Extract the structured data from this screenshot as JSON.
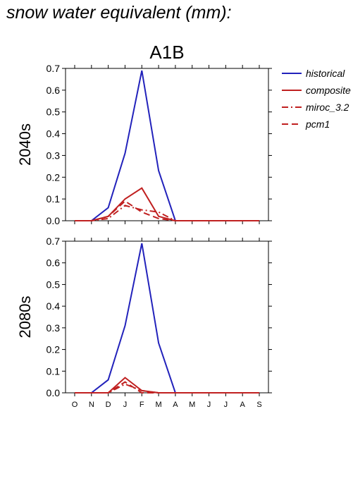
{
  "page": {
    "title": "snow water equivalent (mm):"
  },
  "chart_data": [
    {
      "type": "line",
      "title": "A1B",
      "ylabel": "2040s",
      "categories": [
        "O",
        "N",
        "D",
        "J",
        "F",
        "M",
        "A",
        "M",
        "J",
        "J",
        "A",
        "S"
      ],
      "ylim": [
        0,
        0.7
      ],
      "yticks": [
        "0.0",
        "0.1",
        "0.2",
        "0.3",
        "0.4",
        "0.5",
        "0.6",
        "0.7"
      ],
      "series": [
        {
          "name": "historical",
          "color": "#2222bb",
          "dash": "solid",
          "values": [
            0,
            0,
            0.06,
            0.31,
            0.69,
            0.23,
            0,
            0,
            0,
            0,
            0,
            0
          ]
        },
        {
          "name": "composite",
          "color": "#c02020",
          "dash": "solid",
          "values": [
            0,
            0,
            0.02,
            0.1,
            0.15,
            0.02,
            0,
            0,
            0,
            0,
            0,
            0
          ]
        },
        {
          "name": "miroc_3.2",
          "color": "#c02020",
          "dash": "dashdot",
          "values": [
            0,
            0,
            0.01,
            0.07,
            0.05,
            0.04,
            0,
            0,
            0,
            0,
            0,
            0
          ]
        },
        {
          "name": "pcm1",
          "color": "#c02020",
          "dash": "dash",
          "values": [
            0,
            0,
            0.02,
            0.09,
            0.04,
            0.01,
            0,
            0,
            0,
            0,
            0,
            0
          ]
        }
      ]
    },
    {
      "type": "line",
      "title": "",
      "ylabel": "2080s",
      "categories": [
        "O",
        "N",
        "D",
        "J",
        "F",
        "M",
        "A",
        "M",
        "J",
        "J",
        "A",
        "S"
      ],
      "ylim": [
        0,
        0.7
      ],
      "yticks": [
        "0.0",
        "0.1",
        "0.2",
        "0.3",
        "0.4",
        "0.5",
        "0.6",
        "0.7"
      ],
      "series": [
        {
          "name": "historical",
          "color": "#2222bb",
          "dash": "solid",
          "values": [
            0,
            0,
            0.06,
            0.31,
            0.69,
            0.23,
            0,
            0,
            0,
            0,
            0,
            0
          ]
        },
        {
          "name": "composite",
          "color": "#c02020",
          "dash": "solid",
          "values": [
            0,
            0,
            0,
            0.07,
            0.01,
            0,
            0,
            0,
            0,
            0,
            0,
            0
          ]
        },
        {
          "name": "miroc_3.2",
          "color": "#c02020",
          "dash": "dashdot",
          "values": [
            0,
            0,
            0,
            0.04,
            0.01,
            0,
            0,
            0,
            0,
            0,
            0,
            0
          ]
        },
        {
          "name": "pcm1",
          "color": "#c02020",
          "dash": "dash",
          "values": [
            0,
            0,
            0,
            0.05,
            0,
            0,
            0,
            0,
            0,
            0,
            0,
            0
          ]
        }
      ]
    }
  ],
  "legend": {
    "placement": "right",
    "items": [
      {
        "name": "historical",
        "color": "#2222bb",
        "dash": "solid"
      },
      {
        "name": "composite",
        "color": "#c02020",
        "dash": "solid"
      },
      {
        "name": "miroc_3.2",
        "color": "#c02020",
        "dash": "dashdot"
      },
      {
        "name": "pcm1",
        "color": "#c02020",
        "dash": "dash"
      }
    ]
  }
}
